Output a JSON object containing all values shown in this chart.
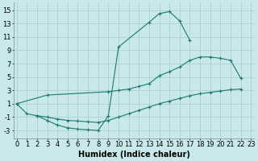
{
  "background_color": "#c8e8ea",
  "grid_color": "#a8cdd0",
  "line_color": "#1a7a6e",
  "xlabel": "Humidex (Indice chaleur)",
  "xlabel_fontsize": 7,
  "tick_fontsize": 6,
  "xlim": [
    -0.3,
    23.3
  ],
  "ylim": [
    -4.2,
    16.2
  ],
  "yticks": [
    -3,
    -1,
    1,
    3,
    5,
    7,
    9,
    11,
    13,
    15
  ],
  "xticks": [
    0,
    1,
    2,
    3,
    4,
    5,
    6,
    7,
    8,
    9,
    10,
    11,
    12,
    13,
    14,
    15,
    16,
    17,
    18,
    19,
    20,
    21,
    22,
    23
  ],
  "curves": [
    {
      "x": [
        0,
        1,
        2,
        3,
        4,
        5,
        6,
        7,
        8,
        9,
        10,
        13,
        14,
        15,
        16,
        17
      ],
      "y": [
        1.0,
        -0.5,
        -0.8,
        -1.5,
        -2.2,
        -2.6,
        -2.8,
        -2.9,
        -3.0,
        -0.8,
        9.5,
        13.2,
        14.5,
        14.8,
        13.4,
        10.5
      ]
    },
    {
      "x": [
        0,
        3,
        9,
        10,
        11,
        12,
        13,
        14,
        15,
        16,
        17,
        18,
        19,
        20,
        21,
        22
      ],
      "y": [
        1.0,
        2.3,
        2.8,
        3.0,
        3.2,
        3.6,
        4.0,
        5.2,
        5.8,
        6.5,
        7.5,
        8.0,
        8.0,
        7.8,
        7.5,
        4.8
      ]
    },
    {
      "x": [
        2,
        3,
        4,
        5,
        6,
        7,
        8,
        9,
        10,
        11,
        12,
        13,
        14,
        15,
        16,
        17,
        18,
        19,
        20,
        21,
        22
      ],
      "y": [
        -0.8,
        -1.0,
        -1.3,
        -1.5,
        -1.6,
        -1.7,
        -1.8,
        -1.5,
        -1.0,
        -0.5,
        0.0,
        0.5,
        1.0,
        1.4,
        1.8,
        2.2,
        2.5,
        2.7,
        2.9,
        3.1,
        3.2
      ]
    }
  ]
}
